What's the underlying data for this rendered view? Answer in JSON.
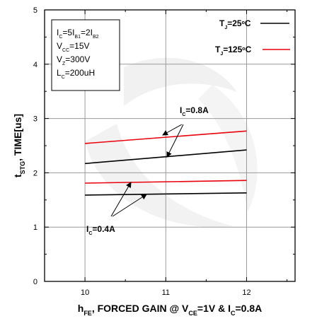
{
  "chart_data": {
    "type": "line",
    "xlabel_parts": [
      "h",
      "FE",
      ", FORCED GAIN @ V",
      "CE",
      "=1V & I",
      "C",
      "=0.8A"
    ],
    "ylabel_parts": [
      "t",
      "STG",
      ", TIME[us]"
    ],
    "xlim": [
      9.5,
      12.6
    ],
    "ylim": [
      0,
      5
    ],
    "x_ticks": [
      10,
      11,
      12
    ],
    "y_ticks": [
      0,
      1,
      2,
      3,
      4,
      5
    ],
    "grid": true,
    "legend_position": "top-right",
    "colors": {
      "tj25": "#000000",
      "tj125": "#e8000b",
      "axis": "#000000",
      "grid": "#9a9a9a",
      "watermark": "#e6e6e6"
    },
    "legend": [
      {
        "parts": [
          "T",
          "J",
          "=25",
          "o",
          "C"
        ],
        "color": "#000000"
      },
      {
        "parts": [
          "T",
          "J",
          "=125",
          "o",
          "C"
        ],
        "color": "#e8000b"
      }
    ],
    "conditions": [
      [
        "I",
        "C",
        "=5I",
        "B1",
        "=2I",
        "B2"
      ],
      [
        "V",
        "CC",
        "=15V"
      ],
      [
        "V",
        "Z",
        "=300V"
      ],
      [
        "L",
        "C",
        "=200uH"
      ]
    ],
    "annotations": [
      {
        "parts": [
          "I",
          "C",
          "=0.8A"
        ]
      },
      {
        "parts": [
          "I",
          "C",
          "=0.4A"
        ]
      }
    ],
    "series": [
      {
        "name": "",
        "group": "0.8A",
        "color": "#e8000b",
        "x": [
          10,
          12
        ],
        "y": [
          2.54,
          2.77
        ]
      },
      {
        "name": "",
        "group": "0.8A",
        "color": "#000000",
        "x": [
          10,
          12
        ],
        "y": [
          2.17,
          2.42
        ]
      },
      {
        "name": "",
        "group": "0.4A",
        "color": "#e8000b",
        "x": [
          10,
          12
        ],
        "y": [
          1.81,
          1.86
        ]
      },
      {
        "name": "",
        "group": "0.4A",
        "color": "#000000",
        "x": [
          10,
          12
        ],
        "y": [
          1.59,
          1.63
        ]
      }
    ]
  }
}
